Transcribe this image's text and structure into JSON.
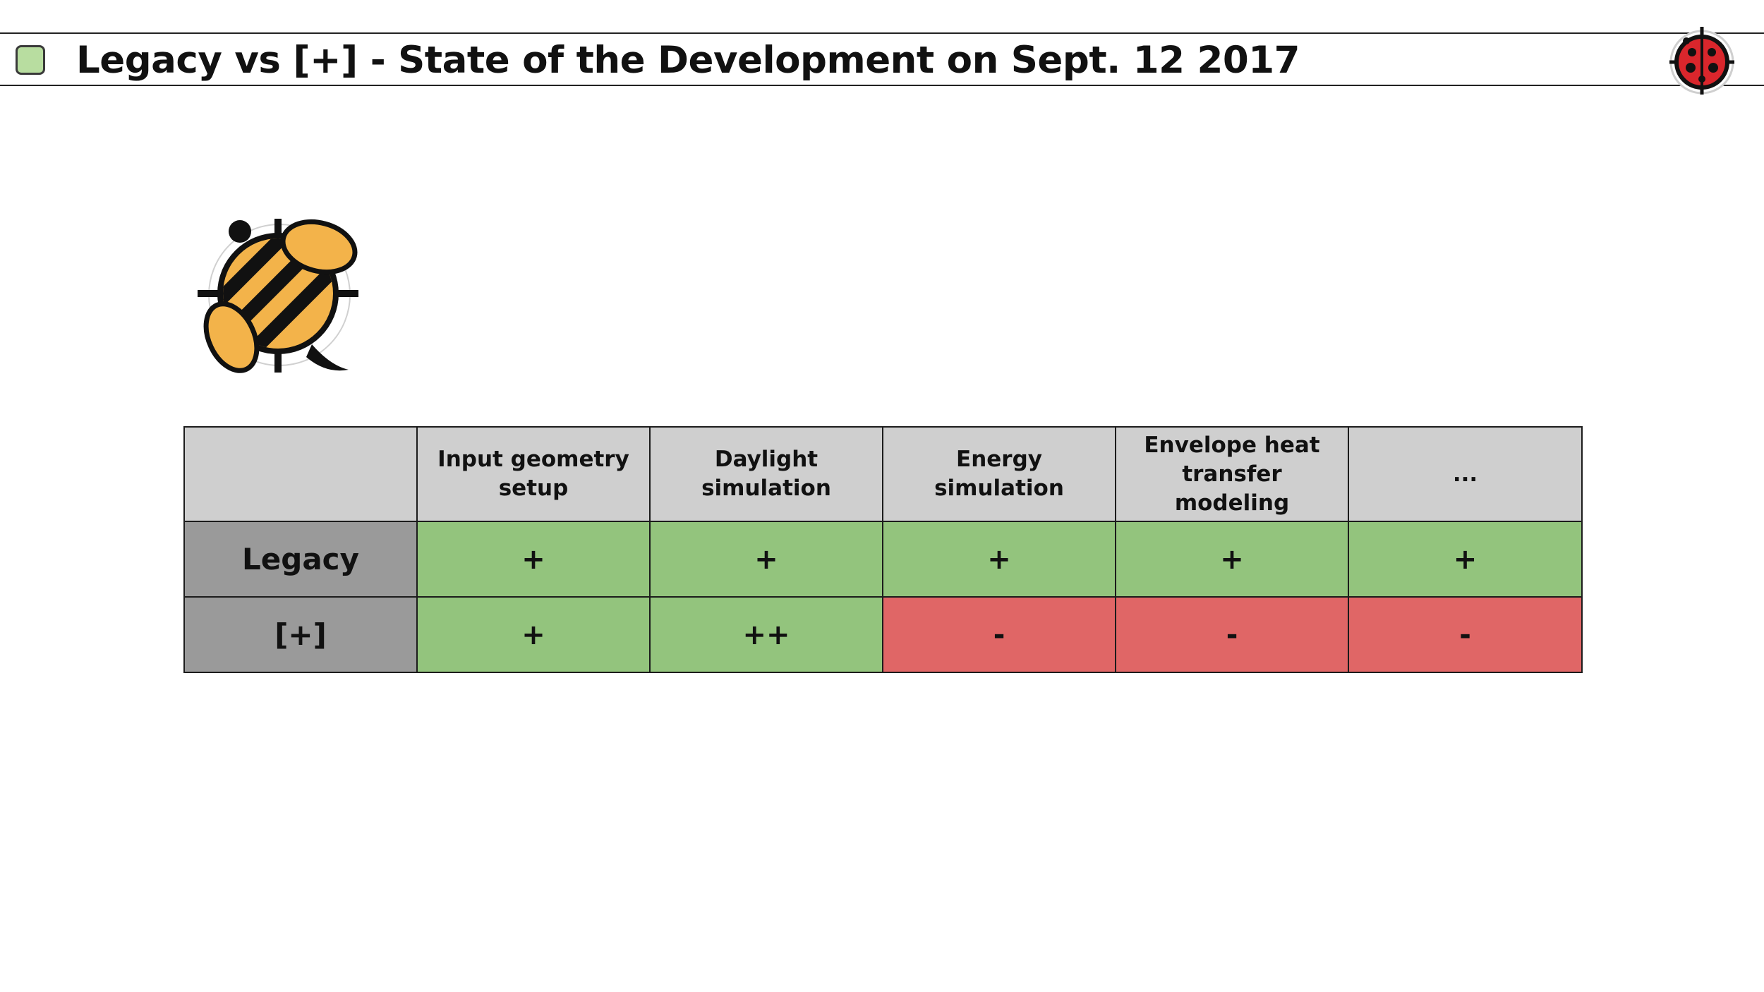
{
  "slide": {
    "title": "Legacy vs [+] - State of the Development on Sept. 12 2017"
  },
  "table": {
    "columns": [
      "",
      "Input geometry setup",
      "Daylight simulation",
      "Energy simulation",
      "Envelope heat transfer modeling",
      "..."
    ],
    "rows": [
      {
        "label": "Legacy",
        "cells": [
          {
            "value": "+",
            "status": "green"
          },
          {
            "value": "+",
            "status": "green"
          },
          {
            "value": "+",
            "status": "green"
          },
          {
            "value": "+",
            "status": "green"
          },
          {
            "value": "+",
            "status": "green"
          }
        ]
      },
      {
        "label": "[+]",
        "cells": [
          {
            "value": "+",
            "status": "green"
          },
          {
            "value": "++",
            "status": "green"
          },
          {
            "value": "-",
            "status": "red"
          },
          {
            "value": "-",
            "status": "red"
          },
          {
            "value": "-",
            "status": "red"
          }
        ]
      }
    ]
  },
  "colors": {
    "title_square": "#b8dda0",
    "header_bg": "#cfcfcf",
    "row_label_bg": "#9a9a9a",
    "green": "#93c47d",
    "red": "#e06666"
  },
  "icons": {
    "title_marker": "green-square-icon",
    "top_right_logo": "ladybug-logo-icon",
    "main_logo": "honeybee-logo-icon"
  }
}
